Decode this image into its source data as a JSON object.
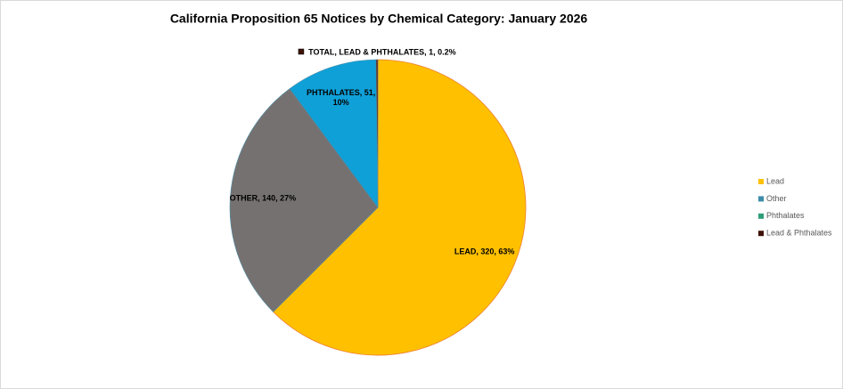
{
  "chart_data": {
    "type": "pie",
    "title": "California Proposition 65 Notices by Chemical Category: January 2026",
    "categories": [
      "Lead",
      "Other",
      "Phthalates",
      "Lead & Phthalates"
    ],
    "values": [
      320,
      140,
      51,
      1
    ],
    "value_labels": [
      "LEAD, 320, 63%",
      "OTHER, 140, 27%",
      "PHTHALATES, 51, 10%",
      "TOTAL, LEAD & PHTHALATES, 1, 0.2%"
    ],
    "colors": [
      "#FFC000",
      "#767171",
      "#0FA0D8",
      "#6B1A00"
    ],
    "legend_colors": [
      "#FFC000",
      "#3D8CAA",
      "#2E9E78",
      "#3E1206"
    ],
    "legend_position": "right"
  }
}
